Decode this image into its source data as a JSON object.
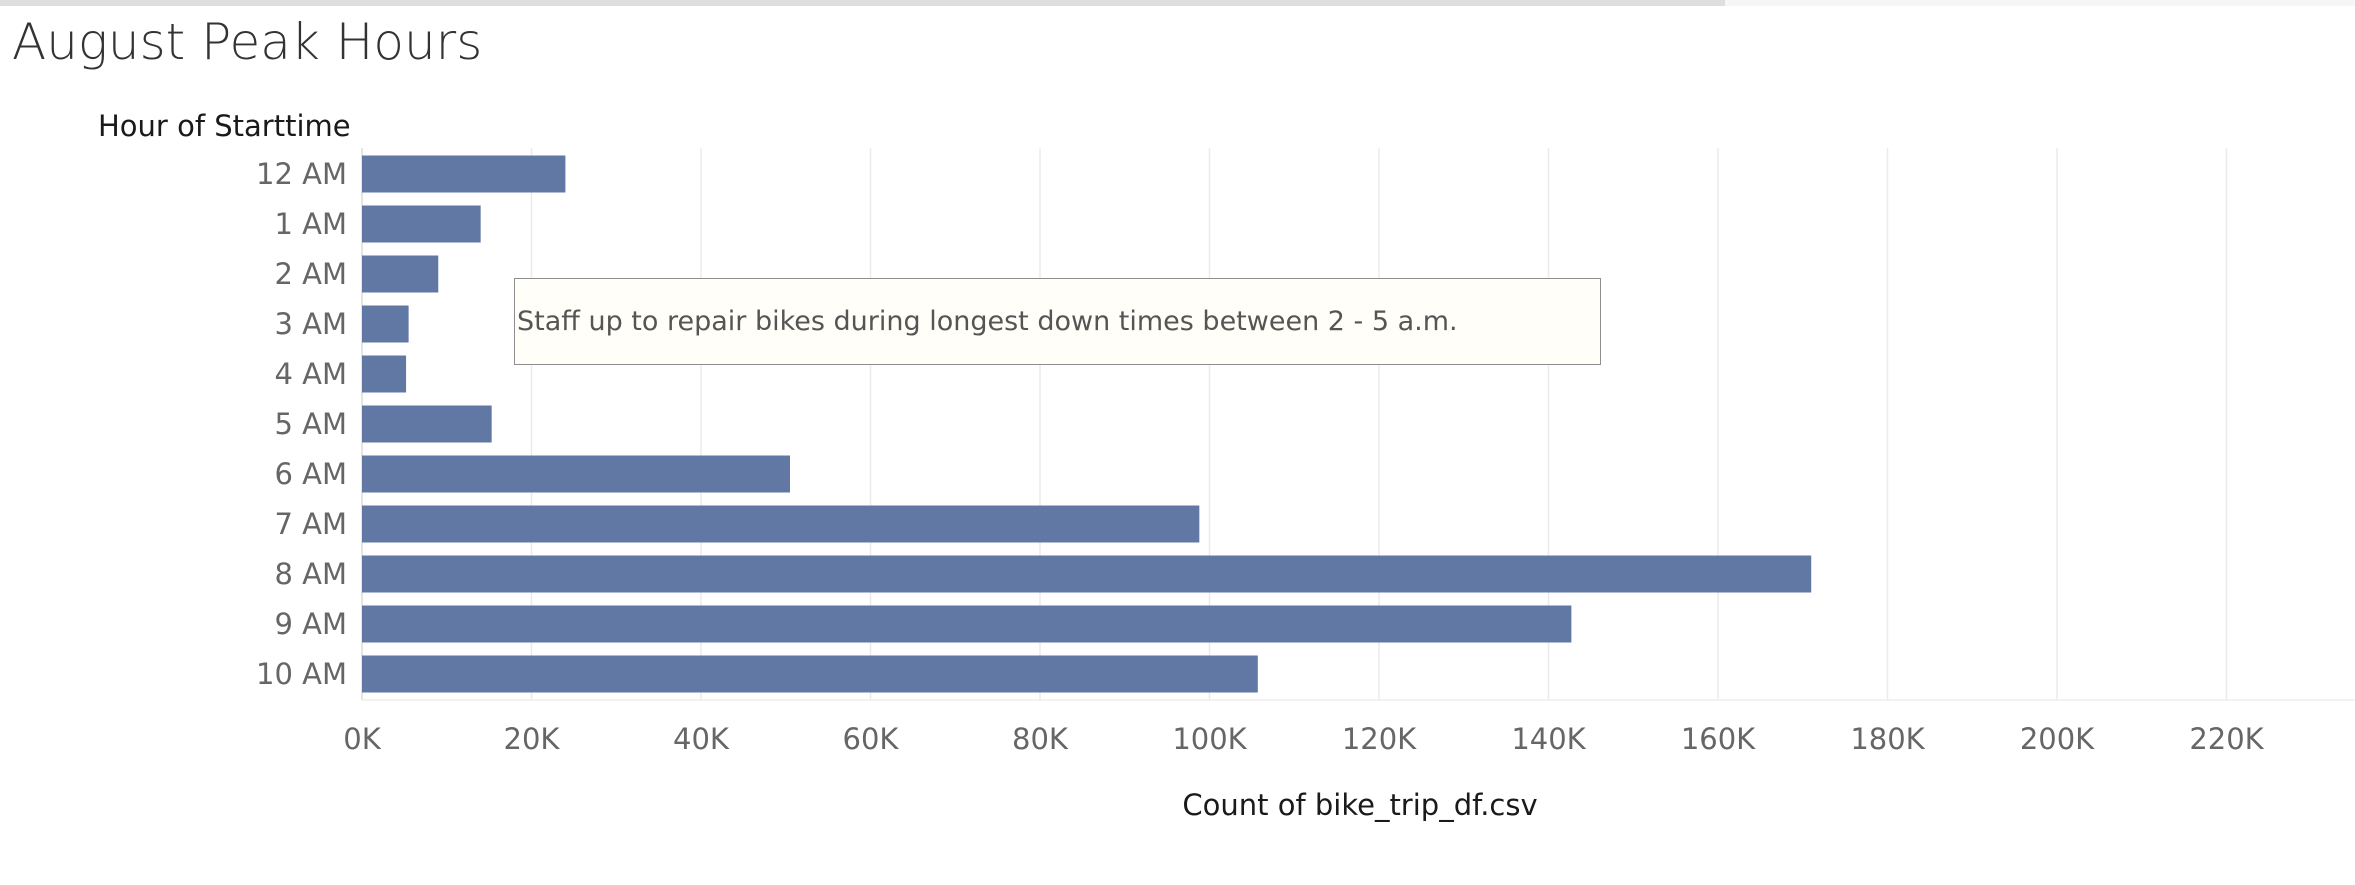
{
  "page_title": "August Peak Hours",
  "annotation": {
    "text": "Staff up to repair bikes during longest down times between 2 - 5 a.m."
  },
  "colors": {
    "bar": "#6178a5",
    "grid": "#ebebeb",
    "tick_label": "#666666",
    "axis_title": "#1a1a1a"
  },
  "chart_data": {
    "type": "bar",
    "orientation": "horizontal",
    "title": "August Peak Hours",
    "ylabel": "Hour of Starttime",
    "xlabel": "Count of bike_trip_df.csv",
    "categories": [
      "12 AM",
      "1 AM",
      "2 AM",
      "3 AM",
      "4 AM",
      "5 AM",
      "6 AM",
      "7 AM",
      "8 AM",
      "9 AM",
      "10 AM"
    ],
    "values": [
      24000,
      14000,
      9000,
      5500,
      5200,
      15300,
      50500,
      98800,
      171000,
      142700,
      105700
    ],
    "xlim": [
      0,
      230000
    ],
    "x_ticks": [
      0,
      20000,
      40000,
      60000,
      80000,
      100000,
      120000,
      140000,
      160000,
      180000,
      200000,
      220000
    ],
    "x_tick_labels": [
      "0K",
      "20K",
      "40K",
      "60K",
      "80K",
      "100K",
      "120K",
      "140K",
      "160K",
      "180K",
      "200K",
      "220K"
    ],
    "grid": true,
    "legend": "none"
  }
}
